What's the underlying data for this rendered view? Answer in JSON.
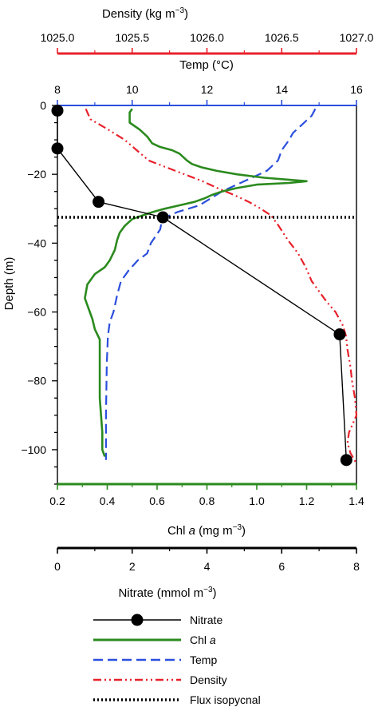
{
  "chart_data": {
    "type": "line",
    "axes": {
      "depth": {
        "label": "Depth (m)",
        "range": [
          -110,
          0
        ],
        "ticks": [
          0,
          -20,
          -40,
          -60,
          -80,
          -100
        ]
      },
      "density": {
        "label": "Density (kg m",
        "label_sup": "−3",
        "label_end": ")",
        "range": [
          1025.0,
          1027.0
        ],
        "ticks": [
          "1025.0",
          "1025.5",
          "1026.0",
          "1026.5",
          "1027.0"
        ],
        "color": "#e8212b"
      },
      "temp": {
        "label": "Temp (°C)",
        "range": [
          8,
          16
        ],
        "ticks": [
          "8",
          "10",
          "12",
          "14",
          "16"
        ],
        "color": "#2b4fdd"
      },
      "chl": {
        "label": "Chl ",
        "label_italic": "a",
        "label_end": " (mg m",
        "label_sup": "−3",
        "label_end2": ")",
        "range": [
          0.2,
          1.4
        ],
        "ticks": [
          "0.2",
          "0.4",
          "0.6",
          "0.8",
          "1.0",
          "1.2",
          "1.4"
        ],
        "color": "#2b8a1e"
      },
      "nitrate": {
        "label": "Nitrate (mmol m",
        "label_sup": "−3",
        "label_end": ")",
        "range": [
          0,
          8
        ],
        "ticks": [
          "0",
          "2",
          "4",
          "6",
          "8"
        ],
        "color": "#000000"
      }
    },
    "series": [
      {
        "name": "Nitrate",
        "axis": "nitrate",
        "color": "#000000",
        "style": "solid-markers",
        "points": [
          [
            0,
            -1.5
          ],
          [
            0,
            -12.5
          ],
          [
            1.1,
            -28
          ],
          [
            2.82,
            -32.5
          ],
          [
            7.55,
            -66.5
          ],
          [
            7.73,
            -103
          ]
        ]
      },
      {
        "name": "Chl a",
        "axis": "chl",
        "color": "#2b8a1e",
        "style": "solid",
        "points": [
          [
            0.5,
            -1
          ],
          [
            0.49,
            -2
          ],
          [
            0.49,
            -5
          ],
          [
            0.53,
            -7
          ],
          [
            0.56,
            -9
          ],
          [
            0.58,
            -11
          ],
          [
            0.61,
            -12
          ],
          [
            0.66,
            -13
          ],
          [
            0.69,
            -14
          ],
          [
            0.72,
            -16
          ],
          [
            0.74,
            -17
          ],
          [
            0.78,
            -18
          ],
          [
            0.84,
            -19
          ],
          [
            0.92,
            -20
          ],
          [
            1.03,
            -21
          ],
          [
            1.2,
            -22
          ],
          [
            1.13,
            -22.5
          ],
          [
            1.0,
            -23
          ],
          [
            0.92,
            -24
          ],
          [
            0.86,
            -25
          ],
          [
            0.82,
            -26
          ],
          [
            0.79,
            -27
          ],
          [
            0.75,
            -28
          ],
          [
            0.69,
            -29
          ],
          [
            0.63,
            -30
          ],
          [
            0.58,
            -31
          ],
          [
            0.54,
            -32
          ],
          [
            0.5,
            -33
          ],
          [
            0.47,
            -35
          ],
          [
            0.45,
            -37
          ],
          [
            0.44,
            -39
          ],
          [
            0.43,
            -42
          ],
          [
            0.41,
            -45
          ],
          [
            0.39,
            -47
          ],
          [
            0.35,
            -49
          ],
          [
            0.32,
            -52
          ],
          [
            0.31,
            -56
          ],
          [
            0.33,
            -60
          ],
          [
            0.34,
            -62
          ],
          [
            0.35,
            -65
          ],
          [
            0.37,
            -68
          ],
          [
            0.37,
            -75
          ],
          [
            0.37,
            -85
          ],
          [
            0.38,
            -95
          ],
          [
            0.38,
            -100
          ],
          [
            0.39,
            -102
          ]
        ]
      },
      {
        "name": "Temp",
        "axis": "temp",
        "color": "#2b4fdd",
        "style": "dashed",
        "points": [
          [
            14.9,
            -1
          ],
          [
            14.8,
            -3
          ],
          [
            14.5,
            -6
          ],
          [
            14.3,
            -8
          ],
          [
            14.2,
            -10
          ],
          [
            14.0,
            -13
          ],
          [
            13.9,
            -16
          ],
          [
            13.6,
            -19
          ],
          [
            13.2,
            -21
          ],
          [
            12.8,
            -23
          ],
          [
            12.4,
            -25
          ],
          [
            12.1,
            -27
          ],
          [
            11.8,
            -29
          ],
          [
            11.5,
            -30
          ],
          [
            11.2,
            -31
          ],
          [
            11.0,
            -32
          ],
          [
            10.8,
            -33
          ],
          [
            10.75,
            -36
          ],
          [
            10.5,
            -40
          ],
          [
            10.4,
            -43
          ],
          [
            10.15,
            -45
          ],
          [
            9.9,
            -48
          ],
          [
            9.7,
            -51
          ],
          [
            9.6,
            -55
          ],
          [
            9.5,
            -60
          ],
          [
            9.4,
            -63
          ],
          [
            9.35,
            -67
          ],
          [
            9.32,
            -75
          ],
          [
            9.3,
            -90
          ],
          [
            9.3,
            -103
          ]
        ]
      },
      {
        "name": "Density",
        "axis": "density",
        "color": "#e8212b",
        "style": "dashdot",
        "points": [
          [
            1025.19,
            -1
          ],
          [
            1025.22,
            -4
          ],
          [
            1025.34,
            -7
          ],
          [
            1025.45,
            -10
          ],
          [
            1025.53,
            -13
          ],
          [
            1025.61,
            -16
          ],
          [
            1025.73,
            -18
          ],
          [
            1025.85,
            -20
          ],
          [
            1025.97,
            -22
          ],
          [
            1026.07,
            -24
          ],
          [
            1026.18,
            -26
          ],
          [
            1026.28,
            -28
          ],
          [
            1026.36,
            -30
          ],
          [
            1026.43,
            -32
          ],
          [
            1026.48,
            -35
          ],
          [
            1026.54,
            -39
          ],
          [
            1026.61,
            -43
          ],
          [
            1026.66,
            -47
          ],
          [
            1026.7,
            -51
          ],
          [
            1026.75,
            -54
          ],
          [
            1026.8,
            -57
          ],
          [
            1026.86,
            -60
          ],
          [
            1026.91,
            -64
          ],
          [
            1026.93,
            -67
          ],
          [
            1026.94,
            -71
          ],
          [
            1026.96,
            -76
          ],
          [
            1026.97,
            -80
          ],
          [
            1026.99,
            -85
          ],
          [
            1027.0,
            -90
          ],
          [
            1026.95,
            -95
          ],
          [
            1026.94,
            -98
          ],
          [
            1026.96,
            -101
          ],
          [
            1027.0,
            -104
          ]
        ]
      },
      {
        "name": "Flux isopycnal",
        "axis": "depth",
        "color": "#000000",
        "style": "dotted",
        "depth": -32.5
      }
    ],
    "legend": {
      "position": "bottom",
      "items": [
        "Nitrate",
        "Chl ",
        "Temp",
        "Density",
        "Flux isopycnal"
      ],
      "chl_italic": "a"
    }
  }
}
